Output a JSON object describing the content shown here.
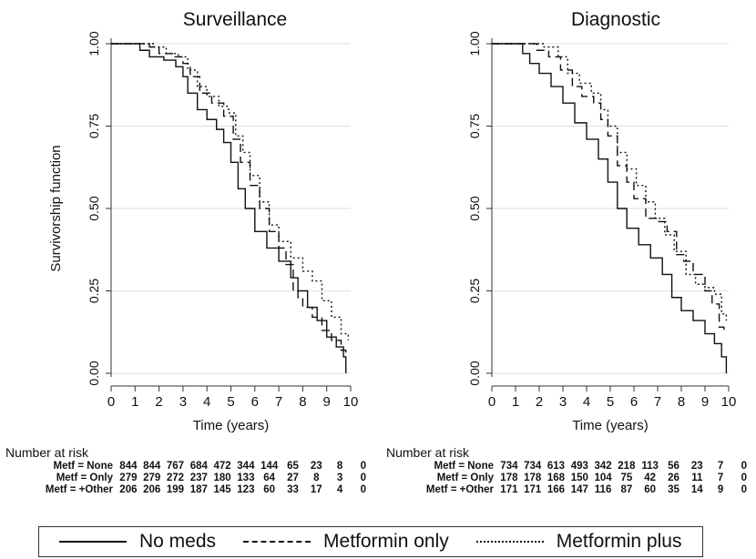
{
  "chart_data": [
    {
      "type": "line",
      "title": "Surveillance",
      "xlabel": "Time (years)",
      "ylabel": "Survivorship function",
      "xlim": [
        0,
        10
      ],
      "ylim": [
        0,
        1
      ],
      "xticks": [
        "0",
        "1",
        "2",
        "3",
        "4",
        "5",
        "6",
        "7",
        "8",
        "9",
        "10"
      ],
      "yticks": [
        "0.00",
        "0.25",
        "0.50",
        "0.75",
        "1.00"
      ],
      "grid": true,
      "series": [
        {
          "name": "No meds",
          "style": "solid",
          "points": [
            [
              0,
              1.0
            ],
            [
              1.0,
              1.0
            ],
            [
              1.2,
              0.98
            ],
            [
              1.6,
              0.96
            ],
            [
              2.2,
              0.95
            ],
            [
              2.7,
              0.93
            ],
            [
              3.0,
              0.9
            ],
            [
              3.2,
              0.85
            ],
            [
              3.6,
              0.8
            ],
            [
              4.0,
              0.77
            ],
            [
              4.4,
              0.74
            ],
            [
              4.7,
              0.7
            ],
            [
              5.0,
              0.64
            ],
            [
              5.3,
              0.56
            ],
            [
              5.6,
              0.5
            ],
            [
              6.0,
              0.43
            ],
            [
              6.5,
              0.38
            ],
            [
              7.0,
              0.34
            ],
            [
              7.5,
              0.29
            ],
            [
              7.8,
              0.25
            ],
            [
              8.2,
              0.2
            ],
            [
              8.6,
              0.16
            ],
            [
              9.0,
              0.11
            ],
            [
              9.4,
              0.08
            ],
            [
              9.7,
              0.05
            ],
            [
              9.8,
              0.0
            ]
          ]
        },
        {
          "name": "Metformin only",
          "style": "dashed",
          "points": [
            [
              0,
              1.0
            ],
            [
              1.2,
              1.0
            ],
            [
              1.6,
              0.99
            ],
            [
              2.0,
              0.97
            ],
            [
              2.6,
              0.96
            ],
            [
              3.0,
              0.94
            ],
            [
              3.3,
              0.9
            ],
            [
              3.7,
              0.85
            ],
            [
              4.2,
              0.82
            ],
            [
              4.7,
              0.78
            ],
            [
              5.1,
              0.71
            ],
            [
              5.4,
              0.64
            ],
            [
              5.8,
              0.57
            ],
            [
              6.2,
              0.5
            ],
            [
              6.6,
              0.43
            ],
            [
              7.0,
              0.38
            ],
            [
              7.3,
              0.33
            ],
            [
              7.6,
              0.25
            ],
            [
              7.8,
              0.23
            ],
            [
              8.0,
              0.2
            ],
            [
              8.4,
              0.17
            ],
            [
              8.8,
              0.13
            ],
            [
              9.2,
              0.1
            ],
            [
              9.6,
              0.07
            ],
            [
              9.8,
              0.05
            ]
          ]
        },
        {
          "name": "Metformin plus",
          "style": "dotted",
          "points": [
            [
              0,
              1.0
            ],
            [
              1.3,
              1.0
            ],
            [
              1.8,
              0.99
            ],
            [
              2.3,
              0.97
            ],
            [
              2.8,
              0.96
            ],
            [
              3.2,
              0.92
            ],
            [
              3.6,
              0.87
            ],
            [
              4.0,
              0.84
            ],
            [
              4.5,
              0.81
            ],
            [
              4.9,
              0.79
            ],
            [
              5.2,
              0.72
            ],
            [
              5.5,
              0.67
            ],
            [
              5.8,
              0.6
            ],
            [
              6.2,
              0.52
            ],
            [
              6.6,
              0.45
            ],
            [
              7.0,
              0.4
            ],
            [
              7.5,
              0.35
            ],
            [
              8.0,
              0.31
            ],
            [
              8.4,
              0.28
            ],
            [
              8.8,
              0.22
            ],
            [
              9.2,
              0.17
            ],
            [
              9.6,
              0.12
            ],
            [
              9.9,
              0.1
            ]
          ]
        }
      ],
      "risk_table": {
        "heading": "Number at risk",
        "rows": [
          {
            "label": "Metf = None",
            "values": [
              "844",
              "844",
              "767",
              "684",
              "472",
              "344",
              "144",
              "65",
              "23",
              "8",
              "0"
            ]
          },
          {
            "label": "Metf = Only",
            "values": [
              "279",
              "279",
              "272",
              "237",
              "180",
              "133",
              "64",
              "27",
              "8",
              "3",
              "0"
            ]
          },
          {
            "label": "Metf = +Other",
            "values": [
              "206",
              "206",
              "199",
              "187",
              "145",
              "123",
              "60",
              "33",
              "17",
              "4",
              "0"
            ]
          }
        ]
      }
    },
    {
      "type": "line",
      "title": "Diagnostic",
      "xlabel": "Time (years)",
      "ylabel": "",
      "xlim": [
        0,
        10
      ],
      "ylim": [
        0,
        1
      ],
      "xticks": [
        "0",
        "1",
        "2",
        "3",
        "4",
        "5",
        "6",
        "7",
        "8",
        "9",
        "10"
      ],
      "yticks": [
        "0.00",
        "0.25",
        "0.50",
        "0.75",
        "1.00"
      ],
      "grid": true,
      "series": [
        {
          "name": "No meds",
          "style": "solid",
          "points": [
            [
              0,
              1.0
            ],
            [
              1.0,
              1.0
            ],
            [
              1.3,
              0.97
            ],
            [
              1.6,
              0.94
            ],
            [
              2.0,
              0.91
            ],
            [
              2.5,
              0.87
            ],
            [
              3.0,
              0.82
            ],
            [
              3.5,
              0.76
            ],
            [
              4.0,
              0.71
            ],
            [
              4.5,
              0.65
            ],
            [
              4.9,
              0.58
            ],
            [
              5.3,
              0.5
            ],
            [
              5.7,
              0.44
            ],
            [
              6.2,
              0.39
            ],
            [
              6.7,
              0.35
            ],
            [
              7.2,
              0.3
            ],
            [
              7.6,
              0.23
            ],
            [
              8.0,
              0.19
            ],
            [
              8.5,
              0.16
            ],
            [
              9.0,
              0.12
            ],
            [
              9.4,
              0.09
            ],
            [
              9.7,
              0.05
            ],
            [
              9.9,
              0.0
            ]
          ]
        },
        {
          "name": "Metformin only",
          "style": "dashed",
          "points": [
            [
              0,
              1.0
            ],
            [
              1.5,
              1.0
            ],
            [
              1.9,
              0.98
            ],
            [
              2.4,
              0.96
            ],
            [
              2.9,
              0.92
            ],
            [
              3.4,
              0.87
            ],
            [
              3.8,
              0.84
            ],
            [
              4.3,
              0.82
            ],
            [
              4.6,
              0.77
            ],
            [
              4.9,
              0.72
            ],
            [
              5.3,
              0.63
            ],
            [
              5.7,
              0.58
            ],
            [
              6.0,
              0.53
            ],
            [
              6.5,
              0.47
            ],
            [
              7.0,
              0.46
            ],
            [
              7.4,
              0.43
            ],
            [
              7.8,
              0.36
            ],
            [
              8.1,
              0.34
            ],
            [
              8.5,
              0.3
            ],
            [
              9.0,
              0.25
            ],
            [
              9.3,
              0.21
            ],
            [
              9.6,
              0.14
            ],
            [
              9.8,
              0.13
            ]
          ]
        },
        {
          "name": "Metformin plus",
          "style": "dotted",
          "points": [
            [
              0,
              1.0
            ],
            [
              1.5,
              1.0
            ],
            [
              2.2,
              0.99
            ],
            [
              2.8,
              0.96
            ],
            [
              3.2,
              0.91
            ],
            [
              3.7,
              0.88
            ],
            [
              4.2,
              0.85
            ],
            [
              4.6,
              0.8
            ],
            [
              4.9,
              0.75
            ],
            [
              5.3,
              0.67
            ],
            [
              5.7,
              0.62
            ],
            [
              6.1,
              0.57
            ],
            [
              6.5,
              0.52
            ],
            [
              6.9,
              0.47
            ],
            [
              7.3,
              0.42
            ],
            [
              7.7,
              0.37
            ],
            [
              8.2,
              0.3
            ],
            [
              8.6,
              0.27
            ],
            [
              9.0,
              0.26
            ],
            [
              9.4,
              0.24
            ],
            [
              9.7,
              0.18
            ],
            [
              9.9,
              0.16
            ]
          ]
        }
      ],
      "risk_table": {
        "heading": "Number at risk",
        "rows": [
          {
            "label": "Metf = None",
            "values": [
              "734",
              "734",
              "613",
              "493",
              "342",
              "218",
              "113",
              "56",
              "23",
              "7",
              "0"
            ]
          },
          {
            "label": "Metf = Only",
            "values": [
              "178",
              "178",
              "168",
              "150",
              "104",
              "75",
              "42",
              "26",
              "11",
              "7",
              "0"
            ]
          },
          {
            "label": "Metf = +Other",
            "values": [
              "171",
              "171",
              "166",
              "147",
              "116",
              "87",
              "60",
              "35",
              "14",
              "9",
              "0"
            ]
          }
        ]
      }
    }
  ],
  "legend": [
    {
      "label": "No meds",
      "style": "solid"
    },
    {
      "label": "Metformin only",
      "style": "dashed"
    },
    {
      "label": "Metformin plus",
      "style": "dotted"
    }
  ],
  "colors": {
    "line": "#111111",
    "grid": "#dddddd",
    "axis": "#333333"
  }
}
